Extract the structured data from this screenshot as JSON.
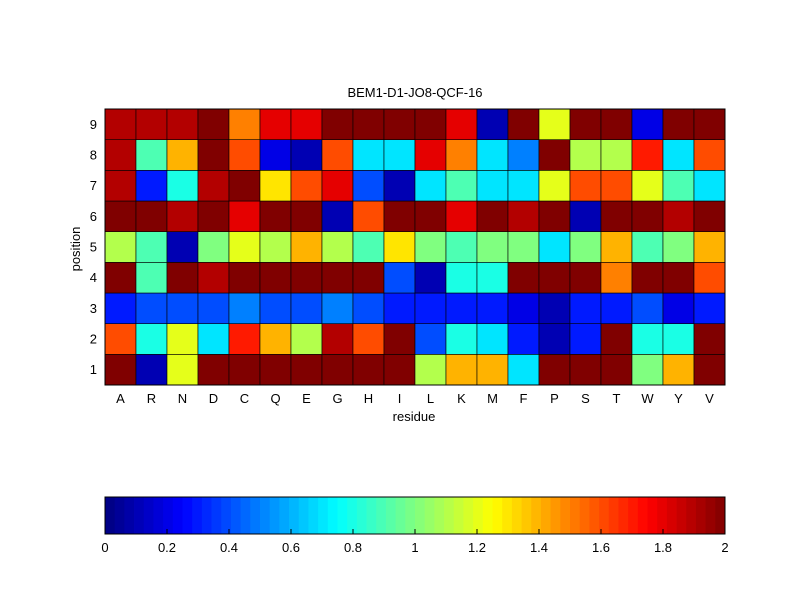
{
  "chart_data": {
    "type": "heatmap",
    "title": "BEM1-D1-JO8-QCF-16",
    "xlabel": "residue",
    "ylabel": "position",
    "x_categories": [
      "A",
      "R",
      "N",
      "D",
      "C",
      "Q",
      "E",
      "G",
      "H",
      "I",
      "L",
      "K",
      "M",
      "F",
      "P",
      "S",
      "T",
      "W",
      "Y",
      "V"
    ],
    "y_categories": [
      "1",
      "2",
      "3",
      "4",
      "5",
      "6",
      "7",
      "8",
      "9"
    ],
    "clim": [
      0,
      2
    ],
    "colormap": "jet",
    "colorbar_ticks": [
      "0",
      "0.2",
      "0.4",
      "0.6",
      "0.8",
      "1",
      "1.2",
      "1.4",
      "1.6",
      "1.8",
      "2"
    ],
    "values": [
      [
        2.0,
        0.1,
        1.2,
        2.0,
        2.0,
        2.0,
        2.0,
        2.0,
        2.0,
        2.0,
        1.1,
        1.4,
        1.4,
        0.7,
        2.0,
        2.0,
        2.0,
        1.0,
        1.4,
        2.0
      ],
      [
        1.6,
        0.8,
        1.2,
        0.7,
        1.7,
        1.4,
        1.1,
        1.9,
        1.6,
        2.0,
        0.4,
        0.8,
        0.7,
        0.3,
        0.1,
        0.3,
        2.0,
        0.8,
        0.8,
        2.0
      ],
      [
        0.3,
        0.4,
        0.4,
        0.4,
        0.5,
        0.4,
        0.4,
        0.5,
        0.4,
        0.3,
        0.3,
        0.3,
        0.3,
        0.2,
        0.1,
        0.3,
        0.3,
        0.4,
        0.2,
        0.3
      ],
      [
        2.0,
        0.9,
        2.0,
        1.9,
        2.0,
        2.0,
        2.0,
        2.0,
        2.0,
        0.4,
        0.1,
        0.8,
        0.8,
        2.0,
        2.0,
        2.0,
        1.5,
        2.0,
        2.0,
        1.6
      ],
      [
        1.1,
        0.9,
        0.1,
        1.0,
        1.2,
        1.1,
        1.4,
        1.1,
        0.9,
        1.3,
        1.0,
        0.9,
        1.0,
        1.0,
        0.7,
        1.0,
        1.4,
        0.9,
        1.0,
        1.4
      ],
      [
        2.0,
        2.0,
        1.9,
        2.0,
        1.8,
        2.0,
        2.0,
        0.1,
        1.6,
        2.0,
        2.0,
        1.8,
        2.0,
        1.9,
        2.0,
        0.1,
        2.0,
        2.0,
        1.9,
        2.0
      ],
      [
        1.9,
        0.3,
        0.8,
        1.9,
        2.0,
        1.3,
        1.6,
        1.8,
        0.4,
        0.1,
        0.7,
        0.9,
        0.7,
        0.7,
        1.2,
        1.6,
        1.6,
        1.2,
        0.9,
        0.7
      ],
      [
        1.9,
        0.9,
        1.4,
        2.0,
        1.6,
        0.2,
        0.1,
        1.6,
        0.7,
        0.7,
        1.8,
        1.5,
        0.7,
        0.5,
        2.0,
        1.1,
        1.1,
        1.7,
        0.7,
        1.6
      ],
      [
        1.9,
        1.9,
        1.9,
        2.0,
        1.5,
        1.8,
        1.8,
        2.0,
        2.0,
        2.0,
        2.0,
        1.8,
        0.1,
        2.0,
        1.2,
        2.0,
        2.0,
        0.2,
        2.0,
        2.0
      ]
    ]
  }
}
